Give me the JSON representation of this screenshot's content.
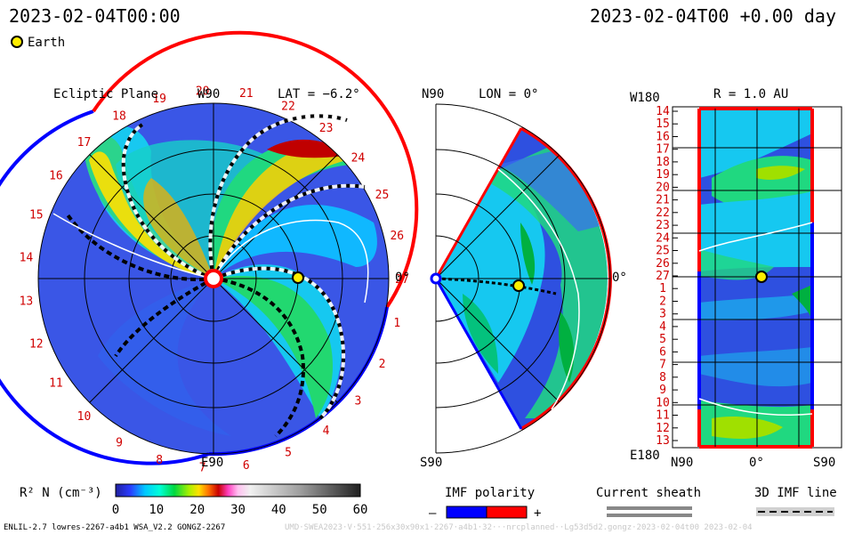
{
  "header": {
    "date_left": "2023-02-04T00:00",
    "date_right": "2023-02-04T00 +0.00 day",
    "legend_earth": "Earth"
  },
  "footer": {
    "left": "ENLIL-2.7 lowres-2267-a4b1 WSA_V2.2 GONGZ-2267",
    "right": "UMD·SWEA2023·V·551·256x30x90x1·2267·a4b1·32···nrcplanned··Lg53d5d2.gongz·2023·02·04t00  2023-02-04"
  },
  "panels": {
    "ecliptic": {
      "title": "Ecliptic Plane",
      "top_label": "W90",
      "bottom_label": "E90",
      "right_label": "0°",
      "lat_label": "LAT = −6.2°"
    },
    "meridional": {
      "top_label": "N90",
      "bottom_label": "S90",
      "right_label": "0°",
      "lon_label": "LON = 0°"
    },
    "sphere": {
      "title": "R = 1.0 AU",
      "top_label": "W180",
      "bottom_label": "E180",
      "x_labels": [
        "N90",
        "0°",
        "S90"
      ]
    }
  },
  "colorbar": {
    "label": "R² N (cm⁻³)",
    "ticks": [
      "0",
      "10",
      "20",
      "30",
      "40",
      "50",
      "60"
    ]
  },
  "imf_legend": {
    "title": "IMF polarity",
    "minus": "–",
    "plus": "+"
  },
  "sheath_legend": {
    "title": "Current sheath"
  },
  "line3d_legend": {
    "title": "3D IMF line"
  },
  "colors": {
    "background": "#3050e0",
    "positive": "#ff0000",
    "negative": "#0000ff",
    "earth": "#ffee00"
  },
  "chart_data": {
    "type": "heatmap",
    "variable": "R² N",
    "unit": "cm⁻³",
    "color_range": [
      0,
      60
    ],
    "earth_position": {
      "r_au": 1.0,
      "lat_deg": -6.2,
      "lon_deg": 0
    },
    "carrington_labels": [
      "19",
      "20",
      "21",
      "22",
      "23",
      "24",
      "25",
      "26",
      "27",
      "1",
      "2",
      "3",
      "4",
      "5",
      "6",
      "7",
      "8",
      "9",
      "10",
      "11",
      "12",
      "13",
      "14",
      "15",
      "16",
      "17",
      "18"
    ],
    "sphere_row_labels": [
      "14",
      "15",
      "16",
      "17",
      "18",
      "19",
      "20",
      "21",
      "22",
      "23",
      "24",
      "25",
      "26",
      "27",
      "1",
      "2",
      "3",
      "4",
      "5",
      "6",
      "7",
      "8",
      "9",
      "10",
      "11",
      "12",
      "13"
    ]
  }
}
